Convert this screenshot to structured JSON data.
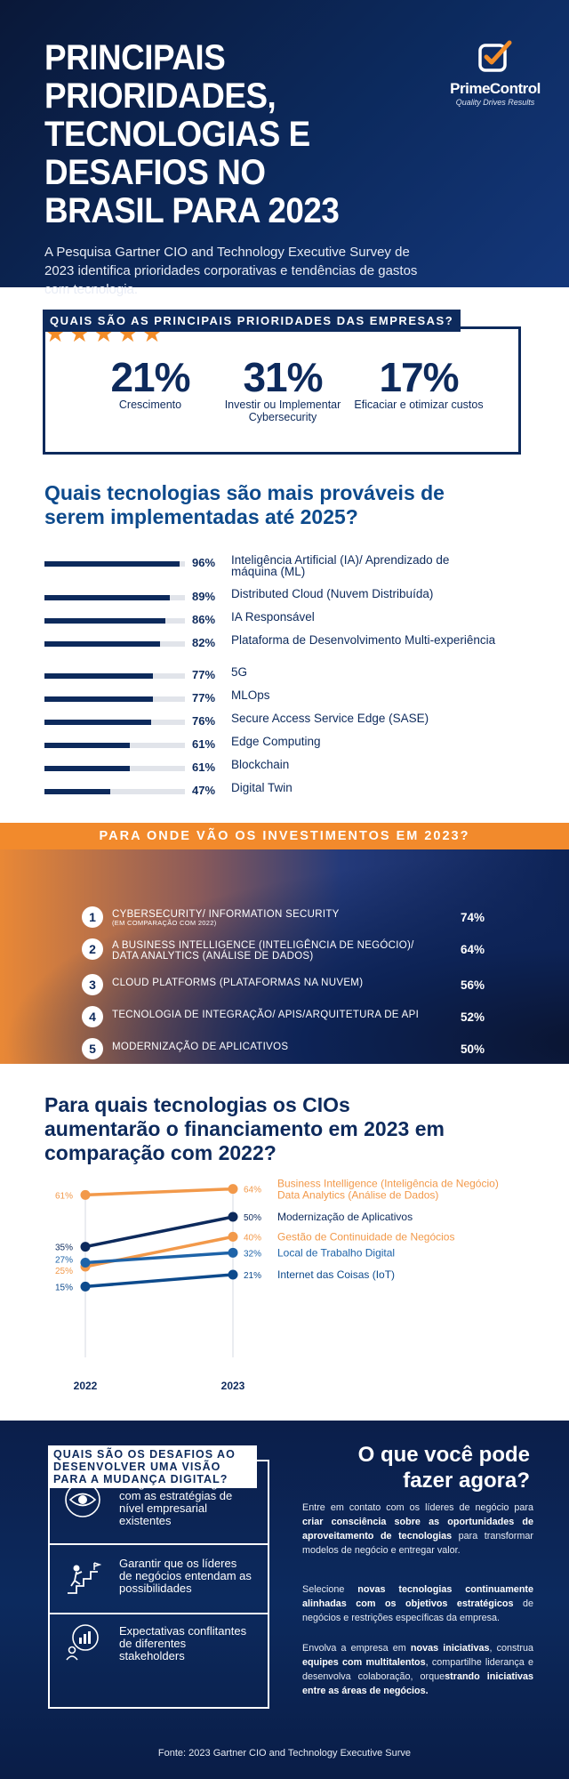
{
  "header": {
    "title": "PRINCIPAIS PRIORIDADES, TECNOLOGIAS E DESAFIOS NO BRASIL PARA 2023",
    "subtitle": "A Pesquisa Gartner CIO and Technology Executive Survey de 2023 identifica prioridades corporativas e tendências de gastos com tecnologia.",
    "rating_stars": 5,
    "star_glyph": "★",
    "logo": {
      "name": "PrimeControl",
      "tagline": "Quality Drives Results",
      "icon": "checkbox-pen-icon"
    }
  },
  "priorities": {
    "heading": "QUAIS SÃO AS PRINCIPAIS PRIORIDADES DAS EMPRESAS?",
    "stats": [
      {
        "value": "21%",
        "label": "Crescimento"
      },
      {
        "value": "31%",
        "label": "Investir ou Implementar Cybersecurity"
      },
      {
        "value": "17%",
        "label": "Eficaciar e otimizar custos"
      }
    ]
  },
  "technologies": {
    "title": "Quais tecnologias são mais prováveis de serem implementadas até 2025?",
    "items": [
      {
        "pct": "96%",
        "value": 96,
        "label": "Inteligência Artificial (IA)/ Aprendizado de máquina (ML)"
      },
      {
        "pct": "89%",
        "value": 89,
        "label": "Distributed Cloud (Nuvem Distribuída)"
      },
      {
        "pct": "86%",
        "value": 86,
        "label": "IA Responsável"
      },
      {
        "pct": "82%",
        "value": 82,
        "label": "Plataforma de Desenvolvimento Multi-experiência"
      },
      {
        "pct": "77%",
        "value": 77,
        "label": "5G"
      },
      {
        "pct": "77%",
        "value": 77,
        "label": "MLOps"
      },
      {
        "pct": "76%",
        "value": 76,
        "label": "Secure Access Service Edge (SASE)"
      },
      {
        "pct": "61%",
        "value": 61,
        "label": "Edge Computing"
      },
      {
        "pct": "61%",
        "value": 61,
        "label": "Blockchain"
      },
      {
        "pct": "47%",
        "value": 47,
        "label": "Digital Twin"
      }
    ]
  },
  "investments": {
    "heading": "PARA ONDE VÃO OS INVESTIMENTOS EM 2023?",
    "items": [
      {
        "num": "1",
        "label": "CYBERSECURITY/ INFORMATION SECURITY",
        "sub": "(EM COMPARAÇÃO COM 2022)",
        "pct": "74%"
      },
      {
        "num": "2",
        "label": "A BUSINESS INTELLIGENCE (INTELIGÊNCIA DE NEGÓCIO)/ DATA ANALYTICS (ANÁLISE DE DADOS)",
        "sub": "",
        "pct": "64%"
      },
      {
        "num": "3",
        "label": "CLOUD PLATFORMS (PLATAFORMAS NA NUVEM)",
        "sub": "",
        "pct": "56%"
      },
      {
        "num": "4",
        "label": "TECNOLOGIA DE INTEGRAÇÃO/ APIS/ARQUITETURA DE API",
        "sub": "",
        "pct": "52%"
      },
      {
        "num": "5",
        "label": "MODERNIZAÇÃO DE APLICATIVOS",
        "sub": "",
        "pct": "50%"
      }
    ]
  },
  "funding": {
    "title": "Para quais tecnologias os CIOs aumentarão o financiamento em 2023 em comparação com 2022?"
  },
  "chart_data": {
    "type": "line",
    "title": "Para quais tecnologias os CIOs aumentarão o financiamento em 2023 em comparação com 2022?",
    "x": [
      "2022",
      "2023"
    ],
    "ylim": [
      0,
      100
    ],
    "grid": false,
    "series": [
      {
        "name": "Business Intelligence (Inteligência de Negócio) Data Analytics (Análise de Dados)",
        "values": [
          61,
          64
        ],
        "labels": [
          "61%",
          "64%"
        ],
        "color": "#f2994a"
      },
      {
        "name": "Modernização de Aplicativos",
        "values": [
          35,
          50
        ],
        "labels": [
          "35%",
          "50%"
        ],
        "color": "#0d2a5c"
      },
      {
        "name": "Gestão de Continuidade de Negócios",
        "values": [
          25,
          40
        ],
        "labels": [
          "25%",
          "40%"
        ],
        "color": "#f2994a"
      },
      {
        "name": "Local de Trabalho Digital",
        "values": [
          27,
          32
        ],
        "labels": [
          "27%",
          "32%"
        ],
        "color": "#1e63a8"
      },
      {
        "name": "Internet das Coisas (IoT)",
        "values": [
          15,
          21
        ],
        "labels": [
          "15%",
          "21%"
        ],
        "color": "#0d4a8c"
      }
    ]
  },
  "challenges": {
    "heading": "QUAIS SÃO OS DESAFIOS AO DESENVOLVER UMA VISÃO PARA A MUDANÇA DIGITAL?",
    "items": [
      {
        "icon": "eye-icon",
        "text": "Integrar a visão digital com as estratégias de nível empresarial existentes"
      },
      {
        "icon": "person-climbing-stairs-icon",
        "text": "Garantir que os líderes de negócios entendam as possibilidades"
      },
      {
        "icon": "presentation-chart-icon",
        "text": "Expectativas conflitantes de diferentes stakeholders"
      }
    ]
  },
  "actions": {
    "title": "O que você pode fazer agora?",
    "paragraphs": [
      [
        {
          "t": "Entre em contato com os líderes de negócio para ",
          "b": false
        },
        {
          "t": "criar consciência sobre as oportunidades de aproveitamento de tecnologias",
          "b": true
        },
        {
          "t": " para transformar modelos de negócio e entregar valor.",
          "b": false
        }
      ],
      [
        {
          "t": "Selecione ",
          "b": false
        },
        {
          "t": "novas tecnologias continuamente alinhadas com os objetivos estratégicos",
          "b": true
        },
        {
          "t": " de negócios e restrições específicas da empresa.",
          "b": false
        }
      ],
      [
        {
          "t": "Envolva a empresa em ",
          "b": false
        },
        {
          "t": "novas iniciativas",
          "b": true
        },
        {
          "t": ", construa ",
          "b": false
        },
        {
          "t": "equipes com multitalentos",
          "b": true
        },
        {
          "t": ", compartilhe liderança e desenvolva colaboração, orque",
          "b": false
        },
        {
          "t": "strando iniciativas entre as áreas de negócios.",
          "b": true
        }
      ]
    ]
  },
  "source": "Fonte: 2023 Gartner CIO and Technology Executive Surve",
  "colors": {
    "navy": "#0d2a5c",
    "orange": "#f28a2c",
    "blue": "#1e63a8"
  }
}
